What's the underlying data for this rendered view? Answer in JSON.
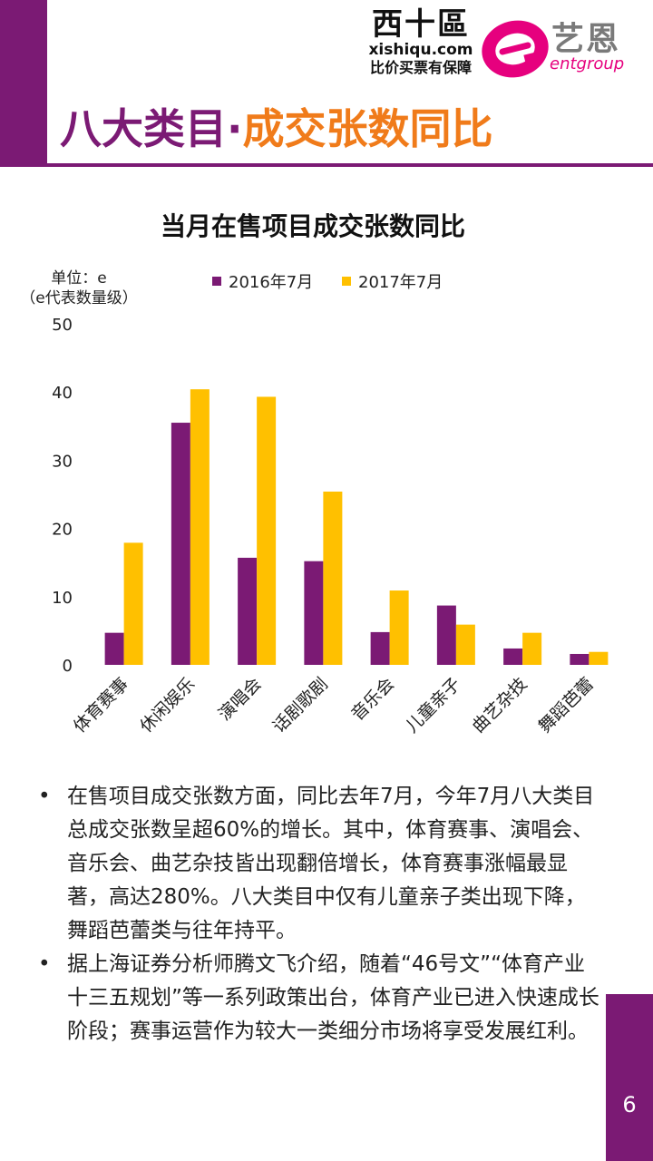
{
  "brand": {
    "xsq_name": "西十區",
    "xsq_domain": "xishiqu.com",
    "xsq_slogan": "比价买票有保障",
    "ent_name": "艺恩",
    "ent_sub": "entgroup",
    "accent": "#7B1A74",
    "orange": "#F07B1A",
    "magenta": "#E6007E"
  },
  "title": {
    "part1": "八大类目·",
    "part2": "成交张数同比"
  },
  "chart_data": {
    "type": "bar",
    "title": "当月在售项目成交张数同比",
    "unit_line1": "单位：e",
    "unit_line2": "（e代表数量级）",
    "categories": [
      "体育赛事",
      "休闲娱乐",
      "演唱会",
      "话剧歌剧",
      "音乐会",
      "儿童亲子",
      "曲艺杂技",
      "舞蹈芭蕾"
    ],
    "series": [
      {
        "name": "2016年7月",
        "color": "#7B1A74",
        "values": [
          4.7,
          35.5,
          15.7,
          15.2,
          4.8,
          8.7,
          2.4,
          1.6
        ]
      },
      {
        "name": "2017年7月",
        "color": "#FFC000",
        "values": [
          17.9,
          40.4,
          39.3,
          25.4,
          10.9,
          5.9,
          4.7,
          1.9
        ]
      }
    ],
    "ylim": [
      0,
      50
    ],
    "yticks": [
      0,
      10,
      20,
      30,
      40,
      50
    ],
    "grid": false,
    "legend": "top"
  },
  "bullets": [
    "在售项目成交张数方面，同比去年7月，今年7月八大类目总成交张数呈超60%的增长。其中，体育赛事、演唱会、音乐会、曲艺杂技皆出现翻倍增长，体育赛事涨幅最显著，高达280%。八大类目中仅有儿童亲子类出现下降，舞蹈芭蕾类与往年持平。",
    "据上海证券分析师腾文飞介绍，随着“46号文”“体育产业十三五规划”等一系列政策出台，体育产业已进入快速成长阶段；赛事运营作为较大一类细分市场将享受发展红利。"
  ],
  "page_number": "6"
}
